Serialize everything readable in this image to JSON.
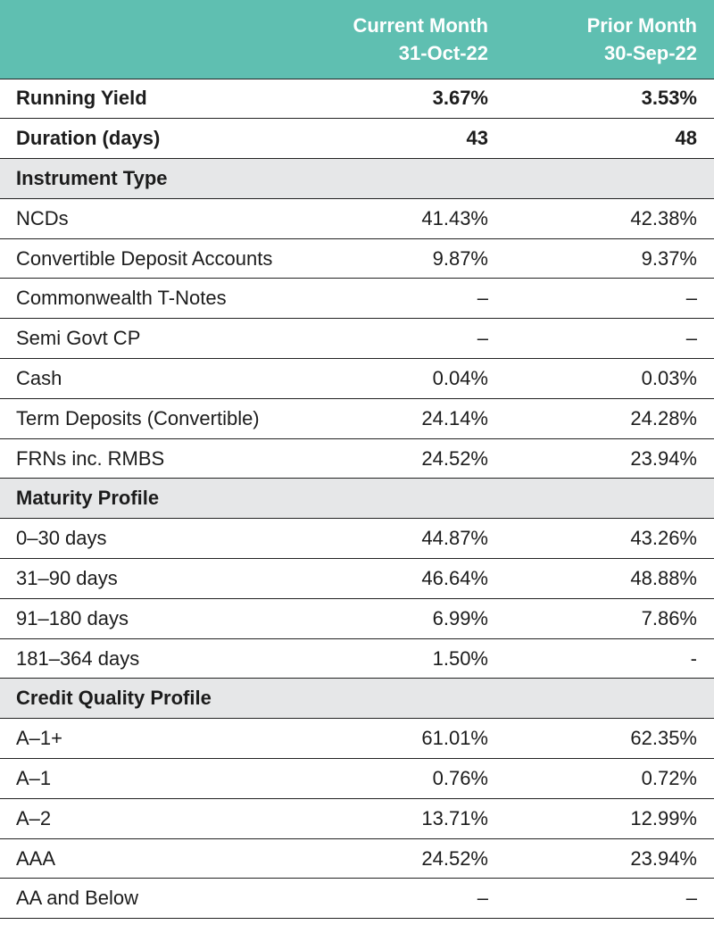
{
  "header": {
    "current_month": "Current Month",
    "current_date": "31-Oct-22",
    "prior_month": "Prior Month",
    "prior_date": "30-Sep-22"
  },
  "summary": [
    {
      "label": "Running Yield",
      "current": "3.67%",
      "prior": "3.53%"
    },
    {
      "label": "Duration (days)",
      "current": "43",
      "prior": "48"
    }
  ],
  "instrument_type": {
    "title": "Instrument Type",
    "rows": [
      {
        "label": "NCDs",
        "current": "41.43%",
        "prior": "42.38%"
      },
      {
        "label": "Convertible Deposit Accounts",
        "current": "9.87%",
        "prior": "9.37%"
      },
      {
        "label": "Commonwealth T-Notes",
        "current": "–",
        "prior": "–"
      },
      {
        "label": "Semi Govt CP",
        "current": "–",
        "prior": "–"
      },
      {
        "label": "Cash",
        "current": "0.04%",
        "prior": "0.03%"
      },
      {
        "label": "Term Deposits (Convertible)",
        "current": "24.14%",
        "prior": "24.28%"
      },
      {
        "label": "FRNs inc. RMBS",
        "current": "24.52%",
        "prior": "23.94%"
      }
    ]
  },
  "maturity_profile": {
    "title": "Maturity Profile",
    "rows": [
      {
        "label": "0–30 days",
        "current": "44.87%",
        "prior": "43.26%"
      },
      {
        "label": "31–90 days",
        "current": "46.64%",
        "prior": "48.88%"
      },
      {
        "label": "91–180 days",
        "current": "6.99%",
        "prior": "7.86%"
      },
      {
        "label": "181–364 days",
        "current": "1.50%",
        "prior": "-"
      }
    ]
  },
  "credit_quality_profile": {
    "title": "Credit Quality Profile",
    "rows": [
      {
        "label": "A–1+",
        "current": "61.01%",
        "prior": "62.35%"
      },
      {
        "label": "A–1",
        "current": "0.76%",
        "prior": "0.72%"
      },
      {
        "label": "A–2",
        "current": "13.71%",
        "prior": "12.99%"
      },
      {
        "label": "AAA",
        "current": "24.52%",
        "prior": "23.94%"
      },
      {
        "label": "AA and Below",
        "current": "–",
        "prior": "–"
      }
    ]
  }
}
